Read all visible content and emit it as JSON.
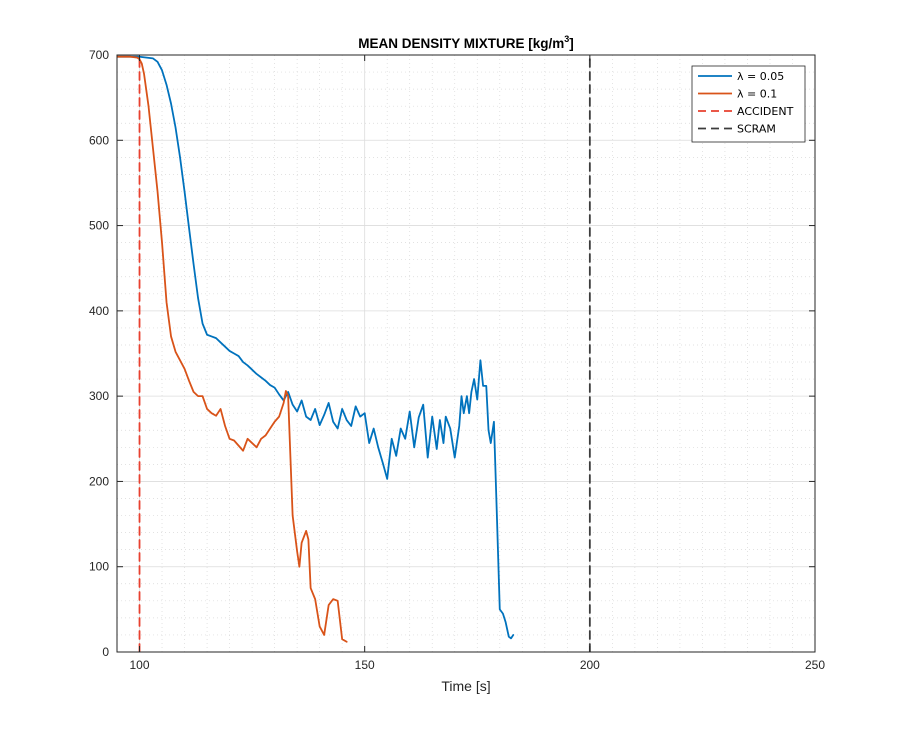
{
  "chart_data": {
    "type": "line",
    "title": "MEAN DENSITY MIXTURE [kg/m",
    "title_superscript": "3",
    "title_suffix": "]",
    "xlabel": "Time [s]",
    "ylabel": "",
    "xlim": [
      95,
      250
    ],
    "ylim": [
      0,
      700
    ],
    "xticks": [
      100,
      150,
      200,
      250
    ],
    "yticks": [
      0,
      100,
      200,
      300,
      400,
      500,
      600,
      700
    ],
    "grid": true,
    "minor_grid": true,
    "legend_position": "top-right",
    "series": [
      {
        "name": "λ = 0.05",
        "color": "#0072BD",
        "x": [
          95,
          100,
          103,
          104,
          105,
          106,
          107,
          108,
          109,
          110,
          111,
          112,
          113,
          114,
          115,
          116,
          117,
          118,
          119,
          120,
          121,
          122,
          123,
          124,
          125,
          126,
          127,
          128,
          129,
          130,
          131,
          132,
          133,
          134,
          135,
          136,
          137,
          138,
          139,
          140,
          141,
          142,
          143,
          144,
          145,
          146,
          147,
          148,
          149,
          150,
          151,
          152,
          153,
          154,
          155,
          156,
          157,
          158,
          159,
          160,
          161,
          162,
          163,
          164,
          165,
          166,
          166.7,
          167.5,
          168,
          169,
          170,
          171,
          171.5,
          172,
          172.7,
          173.2,
          173.7,
          174.3,
          175,
          175.7,
          176.3,
          177,
          177.5,
          178,
          178.7,
          179.3,
          180,
          180.7,
          181.3,
          182,
          182.5,
          183
        ],
        "y": [
          698,
          698,
          696,
          692,
          682,
          665,
          643,
          615,
          580,
          540,
          497,
          455,
          415,
          385,
          372,
          370,
          368,
          363,
          358,
          353,
          350,
          347,
          340,
          336,
          331,
          326,
          322,
          318,
          313,
          310,
          302,
          295,
          305,
          290,
          282,
          295,
          276,
          272,
          285,
          266,
          278,
          292,
          270,
          262,
          285,
          272,
          265,
          288,
          276,
          280,
          245,
          262,
          240,
          222,
          203,
          250,
          230,
          262,
          250,
          282,
          240,
          275,
          290,
          228,
          276,
          238,
          272,
          245,
          276,
          262,
          228,
          265,
          300,
          280,
          300,
          280,
          305,
          320,
          296,
          342,
          312,
          312,
          260,
          245,
          270,
          170,
          50,
          45,
          35,
          18,
          16,
          20
        ]
      },
      {
        "name": "λ = 0.1",
        "color": "#D95319",
        "x": [
          95,
          98,
          99.5,
          100,
          100.5,
          101,
          102,
          103,
          104,
          105,
          106,
          107,
          108,
          109,
          110,
          111,
          112,
          113,
          114,
          115,
          116,
          117,
          118,
          119,
          120,
          121,
          122,
          123,
          124,
          125,
          126,
          127,
          128,
          129,
          130,
          131,
          132,
          132.5,
          133,
          134,
          135,
          135.5,
          136,
          137,
          137.5,
          138,
          139,
          140,
          141,
          142,
          143,
          144,
          145,
          146
        ],
        "y": [
          698,
          698,
          697,
          695,
          690,
          678,
          640,
          590,
          540,
          480,
          410,
          370,
          352,
          342,
          332,
          318,
          305,
          300,
          300,
          285,
          280,
          277,
          285,
          265,
          250,
          248,
          242,
          236,
          250,
          245,
          240,
          250,
          254,
          262,
          270,
          276,
          292,
          306,
          300,
          160,
          118,
          100,
          128,
          142,
          132,
          75,
          62,
          30,
          20,
          55,
          62,
          60,
          15,
          12
        ]
      },
      {
        "name": "ACCIDENT",
        "color": "#E8402F",
        "dashed": true,
        "x": [
          100,
          100
        ],
        "y": [
          0,
          700
        ]
      },
      {
        "name": "SCRAM",
        "color": "#3C3C3C",
        "dashed": true,
        "x": [
          200,
          200
        ],
        "y": [
          0,
          700
        ]
      }
    ]
  }
}
